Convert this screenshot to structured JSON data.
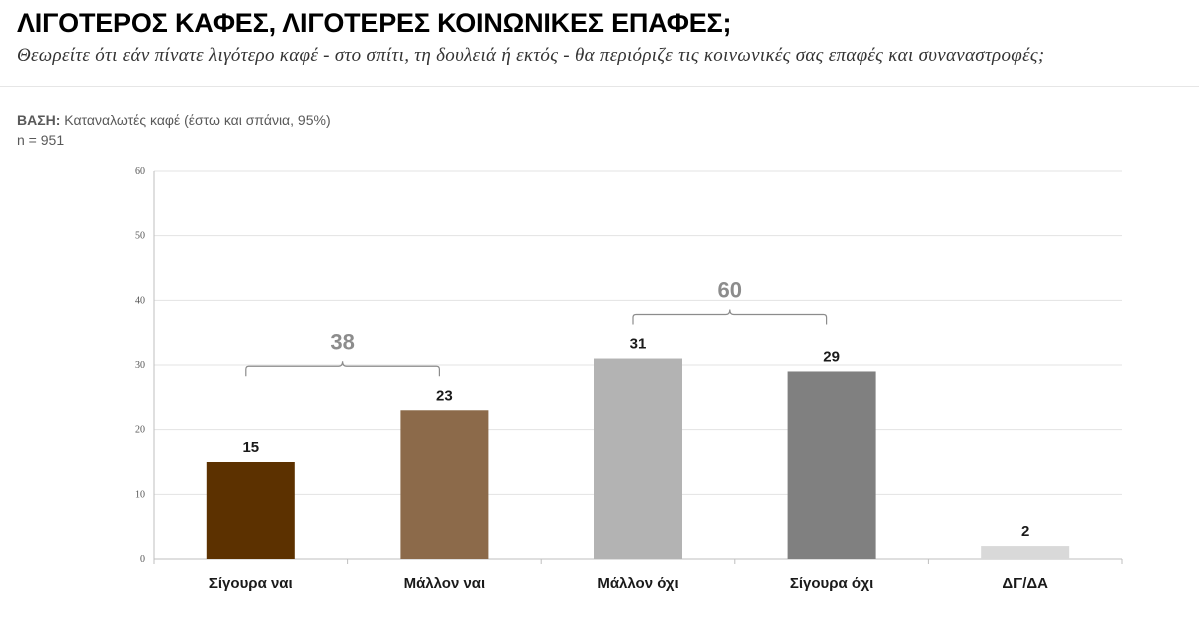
{
  "header": {
    "title": "ΛΙΓΟΤΕΡΟΣ ΚΑΦΕΣ, ΛΙΓΟΤΕΡΕΣ ΚΟΙΝΩΝΙΚΕΣ ΕΠΑΦΕΣ;",
    "subtitle": "Θεωρείτε ότι εάν πίνατε λιγότερο καφέ - στο σπίτι, τη δουλειά ή εκτός - θα περιόριζε τις κοινωνικές σας επαφές και συναναστροφές;"
  },
  "base": {
    "label": "ΒΑΣΗ:",
    "text": " Καταναλωτές καφέ (έστω και σπάνια, 95%)",
    "n": "n = 951"
  },
  "chart_data": {
    "type": "bar",
    "categories": [
      "Σίγουρα ναι",
      "Μάλλον ναι",
      "Μάλλον όχι",
      "Σίγουρα όχι",
      "ΔΓ/ΔΑ"
    ],
    "values": [
      15,
      23,
      31,
      29,
      2
    ],
    "data_labels": [
      "15",
      "23",
      "31",
      "29",
      "2"
    ],
    "colors": [
      "#5c3100",
      "#8c6a4a",
      "#b3b3b3",
      "#808080",
      "#d9d9d9"
    ],
    "ylim": [
      0,
      60
    ],
    "yticks": [
      0,
      10,
      20,
      30,
      40,
      50,
      60
    ],
    "grid": true,
    "groups": [
      {
        "label": "38",
        "from": 0,
        "to": 1
      },
      {
        "label": "60",
        "from": 2,
        "to": 3
      }
    ]
  }
}
